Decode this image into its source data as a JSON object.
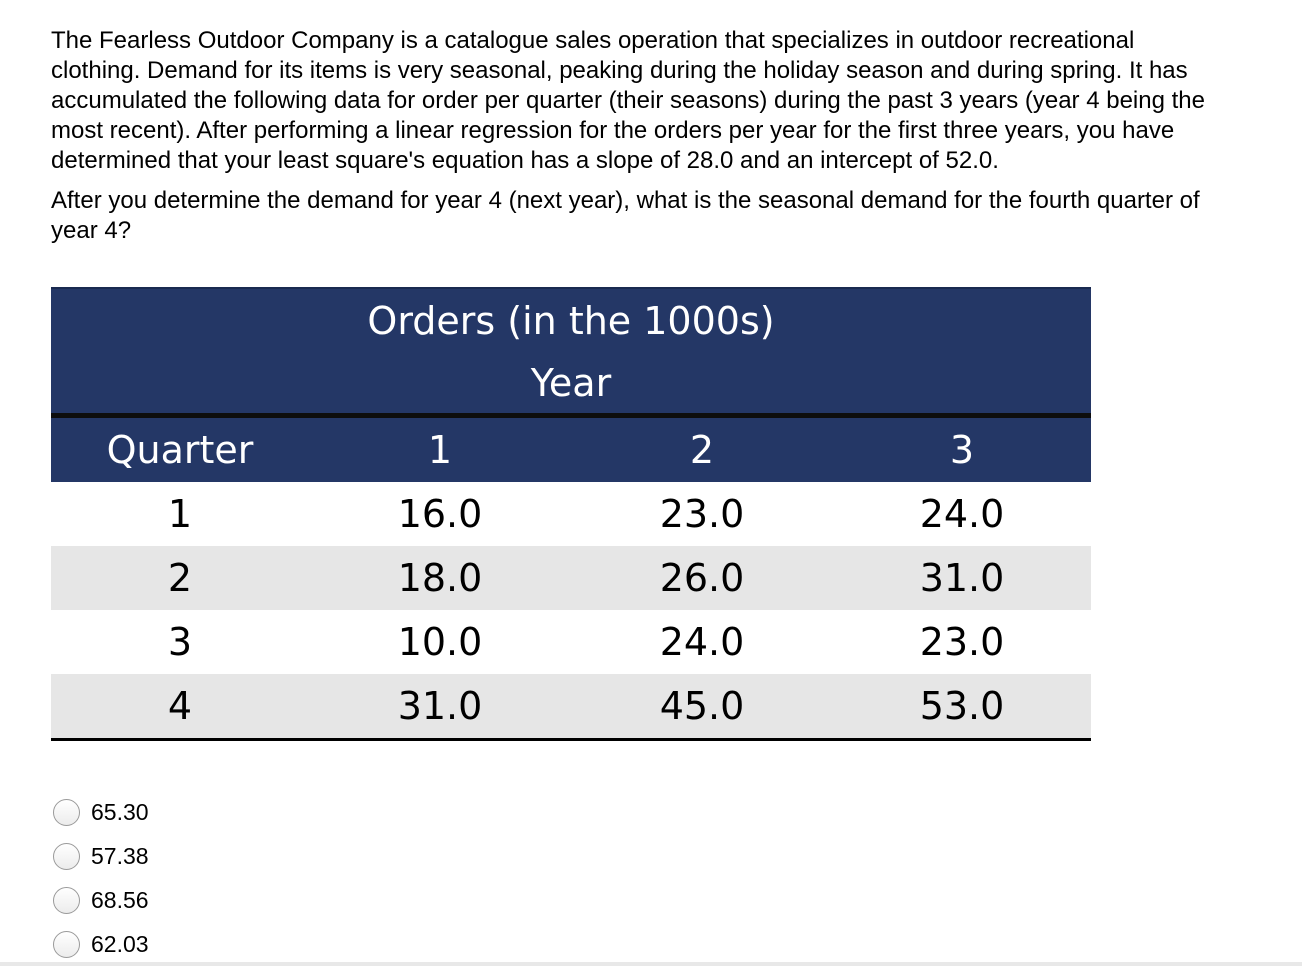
{
  "question": {
    "paragraph": "The Fearless Outdoor Company is a catalogue sales operation that specializes in outdoor recreational clothing.  Demand for its items is very seasonal, peaking during the holiday season and during spring.  It has accumulated the following data for order per quarter (their seasons) during the past 3 years (year 4 being the most recent).  After performing a linear regression for the orders per year for the first three years, you have determined that your least square's equation has a slope of 28.0 and an intercept of 52.0.",
    "prompt": "After you determine the demand for year 4 (next year), what is the seasonal demand for the fourth quarter of year 4?"
  },
  "table": {
    "title": "Orders (in the 1000s)",
    "subtitle": "Year",
    "columns": [
      "Quarter",
      "1",
      "2",
      "3"
    ],
    "rows": [
      [
        "1",
        "16.0",
        "23.0",
        "24.0"
      ],
      [
        "2",
        "18.0",
        "26.0",
        "31.0"
      ],
      [
        "3",
        "10.0",
        "24.0",
        "23.0"
      ],
      [
        "4",
        "31.0",
        "45.0",
        "53.0"
      ]
    ],
    "header_color": "#243766",
    "alt_row_color": "#e6e6e6"
  },
  "options": [
    {
      "label": "65.30",
      "selected": false
    },
    {
      "label": "57.38",
      "selected": false
    },
    {
      "label": "68.56",
      "selected": false
    },
    {
      "label": "62.03",
      "selected": false
    }
  ]
}
